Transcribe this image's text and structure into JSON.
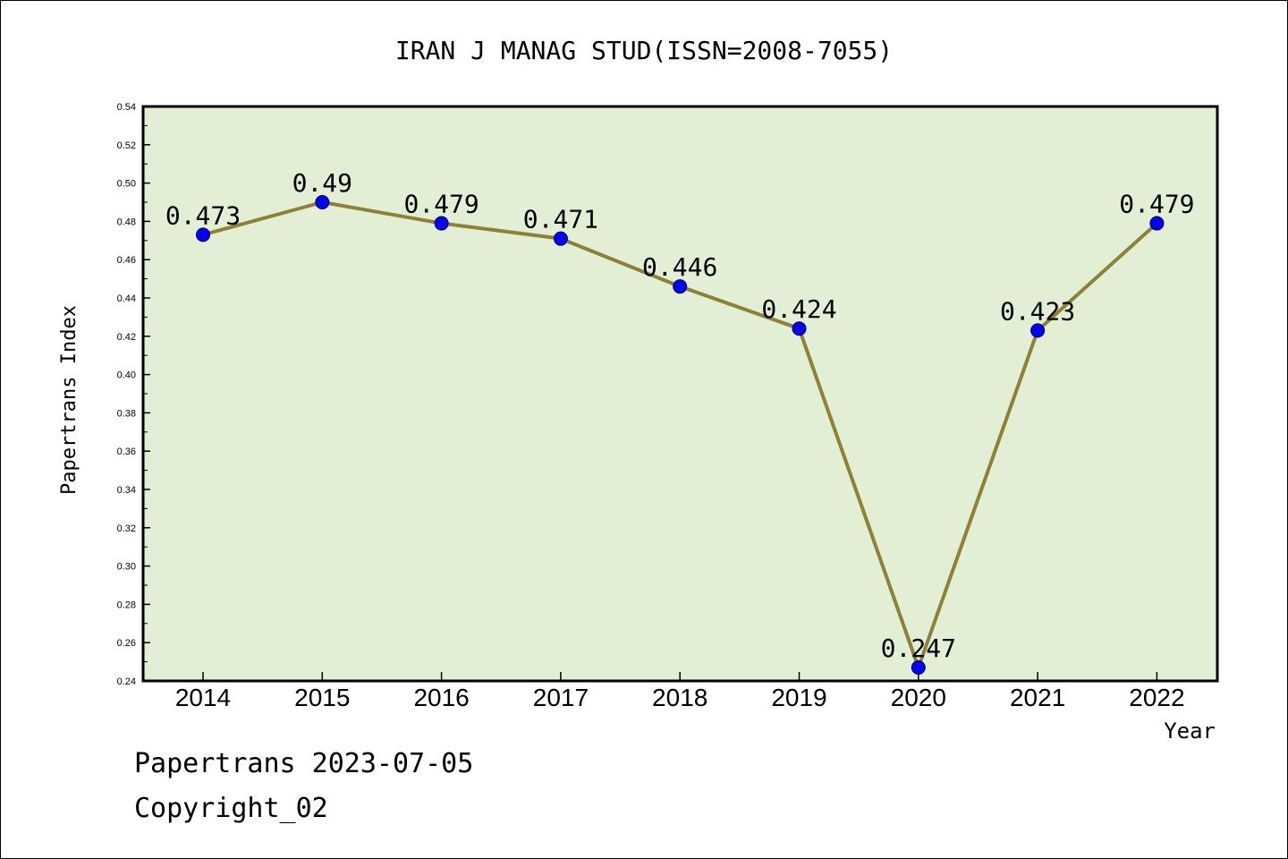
{
  "chart_data": {
    "type": "line",
    "title": "IRAN J MANAG STUD(ISSN=2008-7055)",
    "xlabel": "Year",
    "ylabel": "Papertrans Index",
    "categories": [
      "2014",
      "2015",
      "2016",
      "2017",
      "2018",
      "2019",
      "2020",
      "2021",
      "2022"
    ],
    "values": [
      0.473,
      0.49,
      0.479,
      0.471,
      0.446,
      0.424,
      0.247,
      0.423,
      0.479
    ],
    "data_labels": [
      "0.473",
      "0.49",
      "0.479",
      "0.471",
      "0.446",
      "0.424",
      "0.247",
      "0.423",
      "0.479"
    ],
    "ylim": [
      0.24,
      0.54
    ],
    "yticks": [
      "0.24",
      "0.26",
      "0.28",
      "0.30",
      "0.32",
      "0.34",
      "0.36",
      "0.38",
      "0.40",
      "0.42",
      "0.44",
      "0.46",
      "0.48",
      "0.50",
      "0.52",
      "0.54"
    ],
    "grid": false,
    "legend": "none",
    "colors": {
      "plot_background": "#e2efd5",
      "line": "#8f8035",
      "marker": "#0000ff"
    }
  },
  "footer": {
    "line1": "Papertrans 2023-07-05",
    "line2": "Copyright_02"
  }
}
